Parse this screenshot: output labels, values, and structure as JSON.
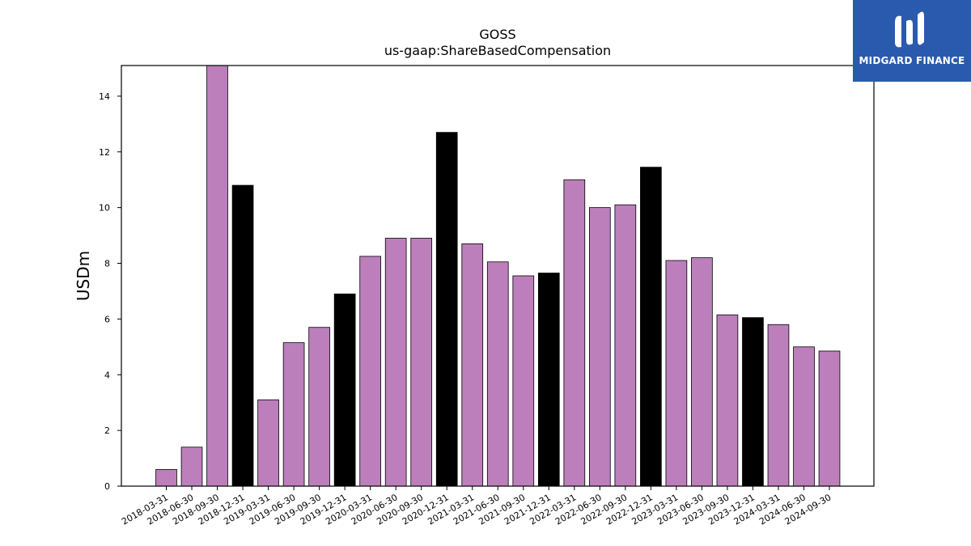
{
  "chart_data": {
    "type": "bar",
    "title": "GOSS",
    "subtitle": "us-gaap:ShareBasedCompensation",
    "xlabel": "",
    "ylabel": "USDm",
    "ylim": [
      0,
      15.1
    ],
    "yticks": [
      0,
      2,
      4,
      6,
      8,
      10,
      12,
      14
    ],
    "grid": false,
    "categories": [
      "2018-03-31",
      "2018-06-30",
      "2018-09-30",
      "2018-12-31",
      "2019-03-31",
      "2019-06-30",
      "2019-09-30",
      "2019-12-31",
      "2020-03-31",
      "2020-06-30",
      "2020-09-30",
      "2020-12-31",
      "2021-03-31",
      "2021-06-30",
      "2021-09-30",
      "2021-12-31",
      "2022-03-31",
      "2022-06-30",
      "2022-09-30",
      "2022-12-31",
      "2023-03-31",
      "2023-06-30",
      "2023-09-30",
      "2023-12-31",
      "2024-03-31",
      "2024-06-30",
      "2024-09-30"
    ],
    "values": [
      0.6,
      1.4,
      15.1,
      10.8,
      3.1,
      5.15,
      5.7,
      6.9,
      8.25,
      8.9,
      8.9,
      12.7,
      8.7,
      8.05,
      7.55,
      7.65,
      11.0,
      10.0,
      10.1,
      11.45,
      8.1,
      8.2,
      6.15,
      6.05,
      5.8,
      5.0,
      4.85
    ],
    "colors": {
      "quarter": "#bc7fbc",
      "year_end": "#000000",
      "edge": "#000000"
    }
  },
  "logo": {
    "text": "MIDGARD FINANCE",
    "background": "#2a5aad"
  }
}
